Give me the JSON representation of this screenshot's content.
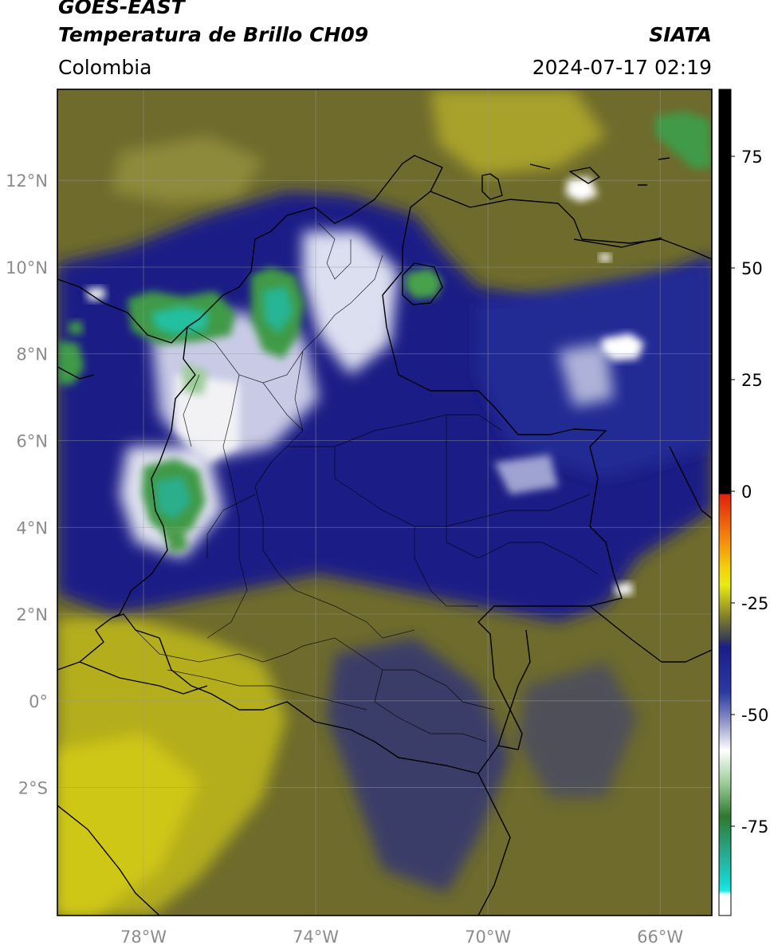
{
  "header": {
    "satellite": "GOES-EAST",
    "product": "Temperatura de Brillo CH09",
    "region": "Colombia",
    "organization": "SIATA",
    "datetime": "2024-07-17 02:19"
  },
  "map": {
    "lon_range": [
      -80,
      -64.8
    ],
    "lat_range": [
      -4.95,
      14.1
    ],
    "lat_ticks": [
      {
        "value": 12,
        "label": "12°N"
      },
      {
        "value": 10,
        "label": "10°N"
      },
      {
        "value": 8,
        "label": "8°N"
      },
      {
        "value": 6,
        "label": "6°N"
      },
      {
        "value": 4,
        "label": "4°N"
      },
      {
        "value": 2,
        "label": "2°N"
      },
      {
        "value": 0,
        "label": "0°"
      },
      {
        "value": -2,
        "label": "2°S"
      }
    ],
    "lon_ticks": [
      {
        "value": -78,
        "label": "78°W"
      },
      {
        "value": -74,
        "label": "74°W"
      },
      {
        "value": -70,
        "label": "70°W"
      },
      {
        "value": -66,
        "label": "66°W"
      }
    ],
    "grid": true,
    "colors": {
      "background_olive": "#6e6b2c",
      "warm_yellow": "#b9b317",
      "cloud_navy": "#1c1f86",
      "cold_white": "#eef0f6",
      "coldest_green": "#3f9a46",
      "teal": "#22c0a0",
      "border": "#000000"
    }
  },
  "colorbar": {
    "range": [
      -95,
      90
    ],
    "ticks": [
      {
        "value": 75,
        "label": "75"
      },
      {
        "value": 50,
        "label": "50"
      },
      {
        "value": 25,
        "label": "25"
      },
      {
        "value": 0,
        "label": "0"
      },
      {
        "value": -25,
        "label": "-25"
      },
      {
        "value": -50,
        "label": "-50"
      },
      {
        "value": -75,
        "label": "-75"
      }
    ]
  }
}
